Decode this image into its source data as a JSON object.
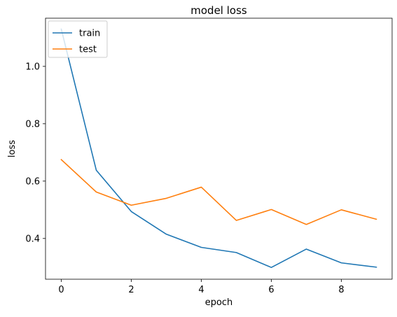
{
  "chart_data": {
    "type": "line",
    "title": "model loss",
    "xlabel": "epoch",
    "ylabel": "loss",
    "x": [
      0,
      1,
      2,
      3,
      4,
      5,
      6,
      7,
      8,
      9
    ],
    "xlim": [
      -0.45,
      9.45
    ],
    "ylim": [
      0.258,
      1.168
    ],
    "xticks": [
      0,
      2,
      4,
      6,
      8
    ],
    "xtick_labels": [
      "0",
      "2",
      "4",
      "6",
      "8"
    ],
    "yticks": [
      0.4,
      0.6,
      0.8,
      1.0
    ],
    "ytick_labels": [
      "0.4",
      "0.6",
      "0.8",
      "1.0"
    ],
    "grid": false,
    "legend_position": "top-left",
    "series": [
      {
        "name": "train",
        "color": "#1f77b4",
        "values": [
          1.13,
          0.638,
          0.494,
          0.415,
          0.369,
          0.351,
          0.299,
          0.363,
          0.315,
          0.3
        ]
      },
      {
        "name": "test",
        "color": "#ff7f0e",
        "values": [
          0.675,
          0.562,
          0.516,
          0.54,
          0.579,
          0.463,
          0.501,
          0.449,
          0.5,
          0.467
        ]
      }
    ]
  }
}
